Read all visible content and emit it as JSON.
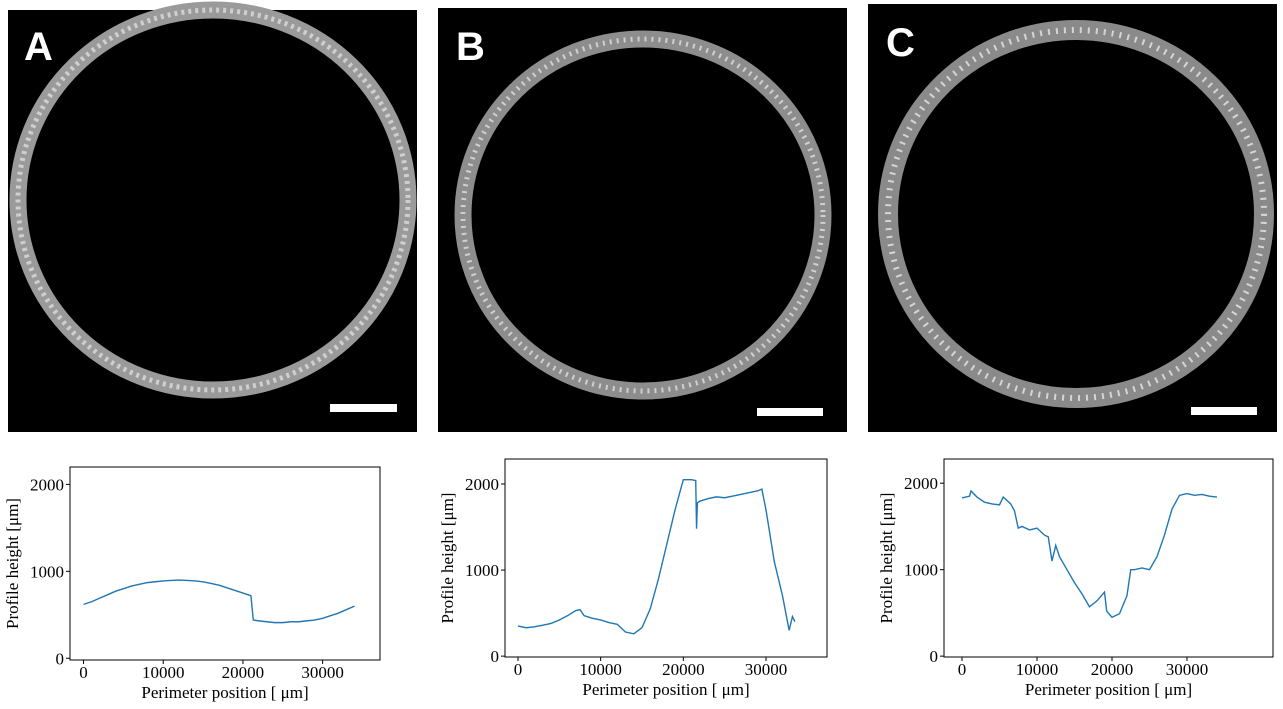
{
  "chart_data": [
    {
      "type": "line",
      "panel_label": "A",
      "xlabel": "Perimeter position [ μm]",
      "ylabel": "Profile height [μm]",
      "x": [
        0,
        1000,
        2000,
        3000,
        4000,
        5000,
        6000,
        7000,
        8000,
        9000,
        10000,
        11000,
        12000,
        13000,
        14000,
        15000,
        16000,
        17000,
        18000,
        19000,
        20000,
        21000,
        21300,
        22000,
        23000,
        24000,
        25000,
        26000,
        27000,
        28000,
        29000,
        30000,
        31000,
        32000,
        33000,
        34000
      ],
      "series": [
        {
          "color": "#1f77b4",
          "values": [
            620,
            650,
            690,
            730,
            770,
            800,
            830,
            850,
            870,
            880,
            890,
            895,
            900,
            895,
            890,
            880,
            860,
            840,
            810,
            780,
            750,
            720,
            440,
            430,
            420,
            410,
            410,
            420,
            420,
            430,
            440,
            460,
            490,
            520,
            560,
            600
          ]
        }
      ],
      "xlim": [
        -1700,
        37200
      ],
      "ylim": [
        -20,
        2200
      ],
      "xticks": [
        0,
        10000,
        20000,
        30000
      ],
      "yticks": [
        0,
        1000,
        2000
      ]
    },
    {
      "type": "line",
      "panel_label": "B",
      "xlabel": "Perimeter position [ μm]",
      "ylabel": "Profile height [μm]",
      "x": [
        0,
        1000,
        2000,
        3000,
        4000,
        5000,
        6000,
        7000,
        7500,
        8000,
        9000,
        10000,
        11000,
        12000,
        13000,
        14000,
        15000,
        16000,
        17000,
        18000,
        19000,
        20000,
        21000,
        21500,
        21600,
        21700,
        22000,
        23000,
        24000,
        25000,
        26000,
        27000,
        28000,
        29000,
        29500,
        30000,
        31000,
        32000,
        32800,
        33200,
        33500
      ],
      "series": [
        {
          "color": "#1f77b4",
          "values": [
            350,
            330,
            340,
            360,
            380,
            420,
            470,
            530,
            540,
            470,
            440,
            420,
            390,
            370,
            280,
            260,
            330,
            550,
            900,
            1300,
            1700,
            2050,
            2050,
            2040,
            1480,
            1780,
            1800,
            1830,
            1850,
            1840,
            1860,
            1880,
            1900,
            1920,
            1940,
            1700,
            1100,
            700,
            300,
            460,
            400
          ]
        }
      ],
      "xlim": [
        -1570,
        37380
      ],
      "ylim": [
        -10,
        2290
      ],
      "xticks": [
        0,
        10000,
        20000,
        30000
      ],
      "yticks": [
        0,
        1000,
        2000
      ]
    },
    {
      "type": "line",
      "panel_label": "C",
      "xlabel": "Perimeter position [ μm]",
      "ylabel": "Profile height [μm]",
      "x": [
        0,
        1000,
        1200,
        2000,
        3000,
        4000,
        5000,
        5500,
        6000,
        6500,
        7000,
        7500,
        8000,
        9000,
        10000,
        11000,
        11500,
        12000,
        12500,
        13000,
        14000,
        15000,
        16000,
        17000,
        18000,
        19000,
        19300,
        20000,
        21000,
        22000,
        22500,
        23000,
        24000,
        25000,
        26000,
        27000,
        28000,
        29000,
        30000,
        31000,
        32000,
        33000,
        34000
      ],
      "series": [
        {
          "color": "#1f77b4",
          "values": [
            1830,
            1850,
            1910,
            1840,
            1780,
            1760,
            1750,
            1840,
            1800,
            1760,
            1680,
            1480,
            1500,
            1460,
            1480,
            1400,
            1380,
            1100,
            1280,
            1150,
            1000,
            850,
            720,
            570,
            640,
            740,
            520,
            450,
            490,
            700,
            1000,
            1000,
            1020,
            1000,
            1150,
            1400,
            1700,
            1860,
            1880,
            1860,
            1870,
            1850,
            1840
          ]
        }
      ],
      "xlim": [
        -2400,
        41470
      ],
      "ylim": [
        -10,
        2280
      ],
      "xticks": [
        0,
        10000,
        20000,
        30000
      ],
      "yticks": [
        0,
        1000,
        2000
      ]
    }
  ]
}
